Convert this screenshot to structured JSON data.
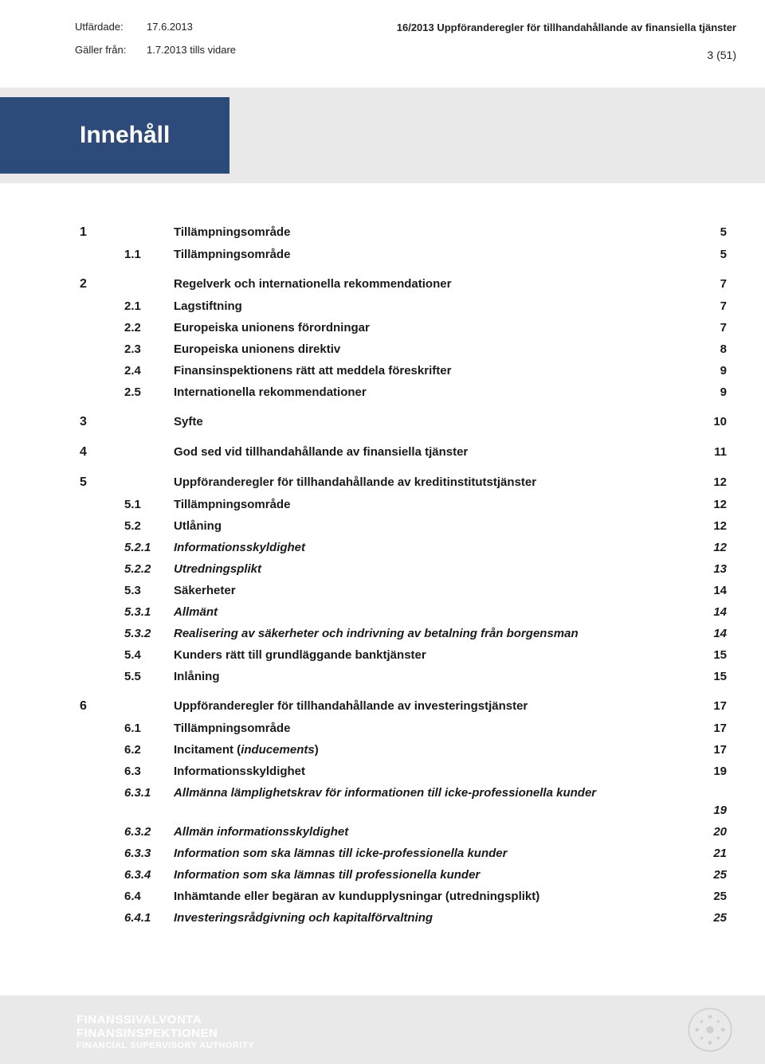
{
  "meta": {
    "issued_label": "Utfärdade:",
    "issued_value": "17.6.2013",
    "valid_label": "Gäller från:",
    "valid_value": "1.7.2013 tills vidare",
    "doc_title": "16/2013 Uppföranderegler för tillhandahållande av finansiella tjänster",
    "page_of": "3 (51)"
  },
  "heading": "Innehåll",
  "toc": [
    {
      "level": 1,
      "num": "1",
      "title": "Tillämpningsområde",
      "page": "5"
    },
    {
      "level": 2,
      "num": "1.1",
      "title": "Tillämpningsområde",
      "page": "5"
    },
    {
      "level": 1,
      "num": "2",
      "title": "Regelverk och internationella rekommendationer",
      "page": "7"
    },
    {
      "level": 2,
      "num": "2.1",
      "title": "Lagstiftning",
      "page": "7"
    },
    {
      "level": 2,
      "num": "2.2",
      "title": "Europeiska unionens förordningar",
      "page": "7"
    },
    {
      "level": 2,
      "num": "2.3",
      "title": "Europeiska unionens direktiv",
      "page": "8"
    },
    {
      "level": 2,
      "num": "2.4",
      "title": "Finansinspektionens rätt att meddela föreskrifter",
      "page": "9"
    },
    {
      "level": 2,
      "num": "2.5",
      "title": "Internationella rekommendationer",
      "page": "9"
    },
    {
      "level": 1,
      "num": "3",
      "title": "Syfte",
      "page": "10"
    },
    {
      "level": 1,
      "num": "4",
      "title": "God sed vid tillhandahållande av finansiella tjänster",
      "page": "11"
    },
    {
      "level": 1,
      "num": "5",
      "title": "Uppföranderegler för tillhandahållande av kreditinstitutstjänster",
      "page": "12"
    },
    {
      "level": 2,
      "num": "5.1",
      "title": "Tillämpningsområde",
      "page": "12"
    },
    {
      "level": 2,
      "num": "5.2",
      "title": "Utlåning",
      "page": "12"
    },
    {
      "level": 3,
      "num": "5.2.1",
      "title": "Informationsskyldighet",
      "page": "12"
    },
    {
      "level": 3,
      "num": "5.2.2",
      "title": "Utredningsplikt",
      "page": "13"
    },
    {
      "level": 2,
      "num": "5.3",
      "title": "Säkerheter",
      "page": "14"
    },
    {
      "level": 3,
      "num": "5.3.1",
      "title": "Allmänt",
      "page": "14"
    },
    {
      "level": 3,
      "num": "5.3.2",
      "title": "Realisering av säkerheter och indrivning av betalning från borgensman",
      "page": "14"
    },
    {
      "level": 2,
      "num": "5.4",
      "title": "Kunders rätt till grundläggande banktjänster",
      "page": "15"
    },
    {
      "level": 2,
      "num": "5.5",
      "title": "Inlåning",
      "page": "15"
    },
    {
      "level": 1,
      "num": "6",
      "title": "Uppföranderegler för tillhandahållande av investeringstjänster",
      "page": "17"
    },
    {
      "level": 2,
      "num": "6.1",
      "title": "Tillämpningsområde",
      "page": "17"
    },
    {
      "level": 2,
      "num": "6.2",
      "title": "Incitament (inducements)",
      "page": "17",
      "italicPart": true
    },
    {
      "level": 2,
      "num": "6.3",
      "title": "Informationsskyldighet",
      "page": "19"
    },
    {
      "level": 3,
      "num": "6.3.1",
      "title": "Allmänna lämplighetskrav för informationen till icke-professionella kunder",
      "page": "19",
      "pageBelow": true
    },
    {
      "level": 3,
      "num": "6.3.2",
      "title": "Allmän informationsskyldighet",
      "page": "20"
    },
    {
      "level": 3,
      "num": "6.3.3",
      "title": "Information som ska lämnas till icke-professionella kunder",
      "page": "21"
    },
    {
      "level": 3,
      "num": "6.3.4",
      "title": "Information som ska lämnas till professionella kunder",
      "page": "25"
    },
    {
      "level": 2,
      "num": "6.4",
      "title": "Inhämtande eller begäran av kundupplysningar (utredningsplikt)",
      "page": "25"
    },
    {
      "level": 3,
      "num": "6.4.1",
      "title": "Investeringsrådgivning och kapitalförvaltning",
      "page": "25"
    }
  ],
  "footer": {
    "line1": "FINANSSIVALVONTA",
    "line2": "FINANSINSPEKTIONEN",
    "line3": "FINANCIAL SUPERVISORY AUTHORITY"
  },
  "colors": {
    "blue": "#2c4a7a",
    "gray": "#e9e9e9",
    "text": "#1a1a1a",
    "white": "#ffffff"
  }
}
